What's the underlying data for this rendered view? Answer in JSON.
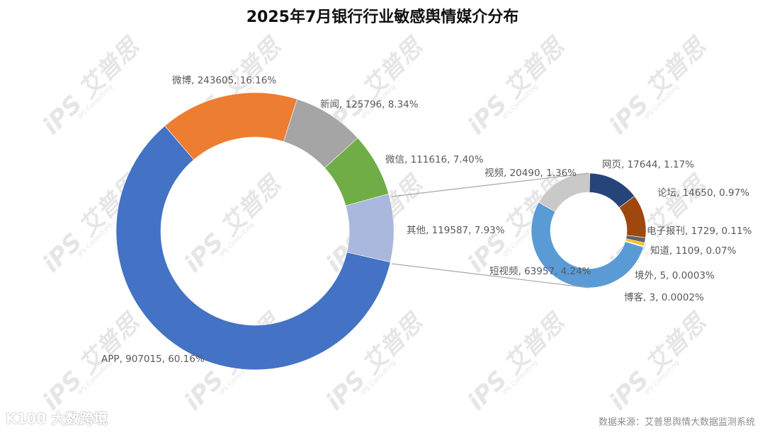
{
  "title": "2025年7月银行行业敏感舆情媒介分布",
  "footer": {
    "source": "数据来源：艾普思舆情大数据监测系统",
    "brand": "K100 大数跨境"
  },
  "watermark": {
    "text": "iPS 艾普思",
    "subtext": "IPS Consulting"
  },
  "colors": {
    "APP": "#4472c4",
    "微博": "#ed7d31",
    "新闻": "#a5a5a5",
    "微信": "#70ad47",
    "其他": "#a9b8dc",
    "网页": "#264478",
    "论坛": "#9e480e",
    "电子报刊": "#636363",
    "知道": "#ffc000",
    "境外": "#5b9bd5",
    "博客": "#70ad47",
    "短视频": "#5b9bd5",
    "视频": "#c9c9c9"
  },
  "chart_data": [
    {
      "type": "pie",
      "subtype": "donut",
      "title": "2025年7月银行行业敏感舆情媒介分布",
      "series": [
        {
          "name": "APP",
          "value": 907015,
          "percent": "60.16%",
          "label": "APP, 907015, 60.16%"
        },
        {
          "name": "微博",
          "value": 243605,
          "percent": "16.16%",
          "label": "微博, 243605, 16.16%"
        },
        {
          "name": "新闻",
          "value": 125796,
          "percent": "8.34%",
          "label": "新闻, 125796, 8.34%"
        },
        {
          "name": "微信",
          "value": 111616,
          "percent": "7.40%",
          "label": "微信, 111616, 7.40%"
        },
        {
          "name": "其他",
          "value": 119587,
          "percent": "7.93%",
          "label": "其他, 119587, 7.93%"
        }
      ]
    },
    {
      "type": "pie",
      "subtype": "donut",
      "title": "其他 breakdown",
      "series": [
        {
          "name": "网页",
          "value": 17644,
          "percent": "1.17%",
          "label": "网页, 17644, 1.17%"
        },
        {
          "name": "论坛",
          "value": 14650,
          "percent": "0.97%",
          "label": "论坛, 14650, 0.97%"
        },
        {
          "name": "电子报刊",
          "value": 1729,
          "percent": "0.11%",
          "label": "电子报刊, 1729, 0.11%"
        },
        {
          "name": "知道",
          "value": 1109,
          "percent": "0.07%",
          "label": "知道, 1109, 0.07%"
        },
        {
          "name": "境外",
          "value": 5,
          "percent": "0.0003%",
          "label": "境外, 5, 0.0003%"
        },
        {
          "name": "博客",
          "value": 3,
          "percent": "0.0002%",
          "label": "博客, 3, 0.0002%"
        },
        {
          "name": "短视频",
          "value": 63957,
          "percent": "4.24%",
          "label": "短视频, 63957, 4.24%"
        },
        {
          "name": "视频",
          "value": 20490,
          "percent": "1.36%",
          "label": "视频, 20490, 1.36%"
        }
      ]
    }
  ],
  "labels": {
    "main": [
      "APP, 907015, 60.16%",
      "微博, 243605, 16.16%",
      "新闻, 125796, 8.34%",
      "微信, 111616, 7.40%",
      "其他, 119587, 7.93%"
    ],
    "sub": [
      "网页, 17644, 1.17%",
      "论坛, 14650, 0.97%",
      "电子报刊, 1729, 0.11%",
      "知道, 1109, 0.07%",
      "境外, 5, 0.0003%",
      "博客, 3, 0.0002%",
      "短视频, 63957, 4.24%",
      "视频, 20490, 1.36%"
    ]
  }
}
